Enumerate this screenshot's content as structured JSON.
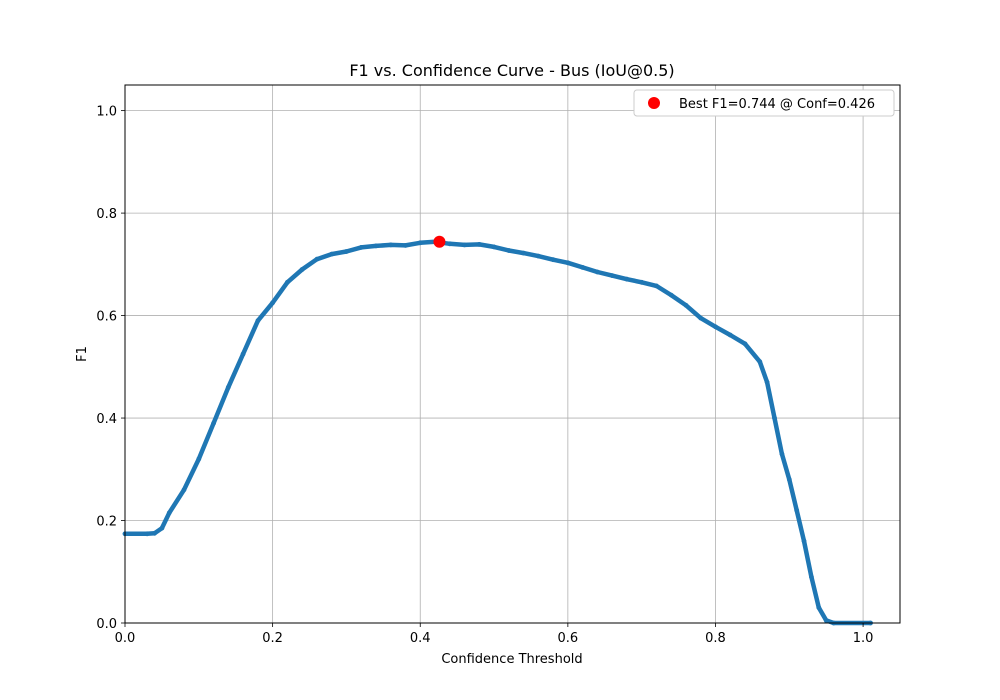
{
  "chart_data": {
    "type": "line",
    "title": "F1 vs. Confidence Curve - Bus (IoU@0.5)",
    "xlabel": "Confidence Threshold",
    "ylabel": "F1",
    "xlim": [
      0.0,
      1.05
    ],
    "ylim": [
      0.0,
      1.05
    ],
    "xticks": [
      0.0,
      0.2,
      0.4,
      0.6,
      0.8,
      1.0
    ],
    "xtick_labels": [
      "0.0",
      "0.2",
      "0.4",
      "0.6",
      "0.8",
      "1.0"
    ],
    "yticks": [
      0.0,
      0.2,
      0.4,
      0.6,
      0.8,
      1.0
    ],
    "ytick_labels": [
      "0.0",
      "0.2",
      "0.4",
      "0.6",
      "0.8",
      "1.0"
    ],
    "grid": true,
    "legend_position": "top-right",
    "series": [
      {
        "color": "#1f77b4",
        "x": [
          0.0,
          0.03,
          0.04,
          0.05,
          0.06,
          0.08,
          0.1,
          0.12,
          0.14,
          0.16,
          0.18,
          0.2,
          0.22,
          0.24,
          0.26,
          0.28,
          0.3,
          0.32,
          0.34,
          0.36,
          0.38,
          0.4,
          0.42,
          0.44,
          0.46,
          0.48,
          0.5,
          0.52,
          0.54,
          0.56,
          0.58,
          0.6,
          0.62,
          0.64,
          0.66,
          0.68,
          0.7,
          0.72,
          0.74,
          0.76,
          0.78,
          0.8,
          0.82,
          0.84,
          0.86,
          0.87,
          0.88,
          0.89,
          0.9,
          0.91,
          0.92,
          0.93,
          0.94,
          0.95,
          0.96,
          1.01
        ],
        "y": [
          0.174,
          0.174,
          0.175,
          0.185,
          0.215,
          0.26,
          0.32,
          0.39,
          0.46,
          0.525,
          0.59,
          0.625,
          0.665,
          0.69,
          0.71,
          0.72,
          0.725,
          0.733,
          0.736,
          0.738,
          0.737,
          0.742,
          0.744,
          0.74,
          0.738,
          0.739,
          0.734,
          0.727,
          0.722,
          0.716,
          0.709,
          0.703,
          0.694,
          0.685,
          0.678,
          0.671,
          0.665,
          0.658,
          0.64,
          0.62,
          0.595,
          0.578,
          0.562,
          0.545,
          0.51,
          0.47,
          0.4,
          0.33,
          0.28,
          0.22,
          0.16,
          0.09,
          0.03,
          0.005,
          0.0,
          0.0
        ]
      }
    ],
    "best_point": {
      "x": 0.426,
      "y": 0.744,
      "color": "#ff0000",
      "label": "Best F1=0.744 @ Conf=0.426"
    }
  }
}
